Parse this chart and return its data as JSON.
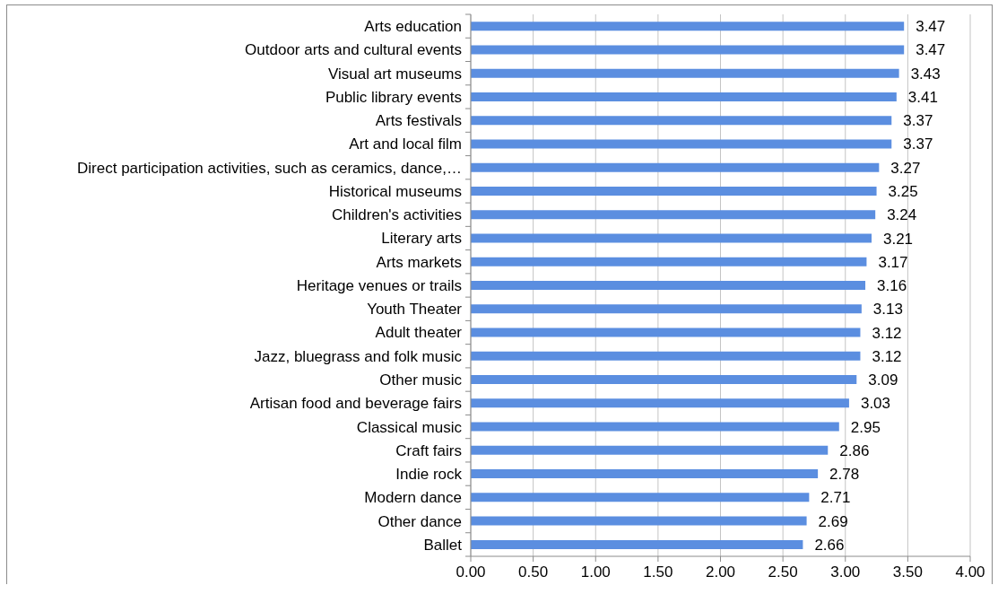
{
  "chart_data": {
    "type": "bar",
    "orientation": "horizontal",
    "categories": [
      "Arts education",
      "Outdoor arts and cultural events",
      "Visual art museums",
      "Public library events",
      "Arts festivals",
      "Art and local film",
      "Direct participation activities, such as ceramics, dance,…",
      "Historical museums",
      "Children's activities",
      "Literary arts",
      "Arts markets",
      "Heritage venues or trails",
      "Youth Theater",
      "Adult theater",
      "Jazz, bluegrass and folk music",
      "Other music",
      "Artisan food and beverage fairs",
      "Classical music",
      "Craft fairs",
      "Indie rock",
      "Modern dance",
      "Other dance",
      "Ballet"
    ],
    "values": [
      3.47,
      3.47,
      3.43,
      3.41,
      3.37,
      3.37,
      3.27,
      3.25,
      3.24,
      3.21,
      3.17,
      3.16,
      3.13,
      3.12,
      3.12,
      3.09,
      3.03,
      2.95,
      2.86,
      2.78,
      2.71,
      2.69,
      2.66
    ],
    "color": "#5b8ee0",
    "xlim": [
      0,
      4
    ],
    "xticks": [
      {
        "value": 0,
        "label": "0.00"
      },
      {
        "value": 0.5,
        "label": "0.50"
      },
      {
        "value": 1,
        "label": "1.00"
      },
      {
        "value": 1.5,
        "label": "1.50"
      },
      {
        "value": 2,
        "label": "2.00"
      },
      {
        "value": 2.5,
        "label": "2.50"
      },
      {
        "value": 3,
        "label": "3.00"
      },
      {
        "value": 3.5,
        "label": "3.50"
      },
      {
        "value": 4,
        "label": "4.00"
      }
    ],
    "grid": "x",
    "data_labels": true
  }
}
